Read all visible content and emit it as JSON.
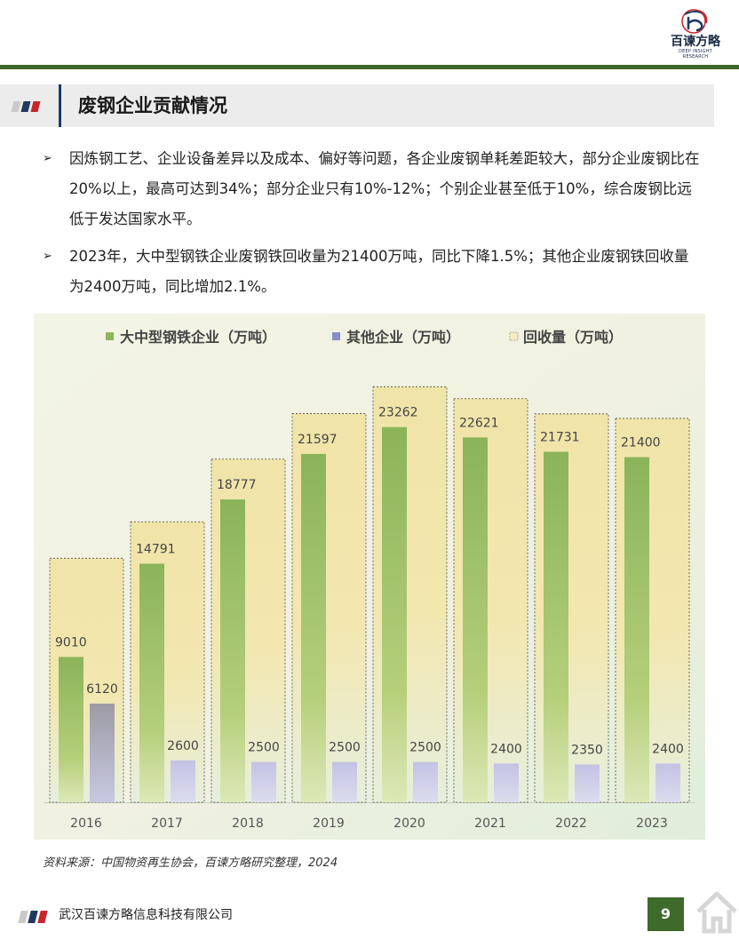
{
  "brand": {
    "logo_name": "百谏方略",
    "logo_subtitle": "DEEP INSIGHT RESEARCH",
    "green": "#3e6a2c",
    "navy": "#1e3a5f",
    "red": "#c8262c"
  },
  "section": {
    "title": "废钢企业贡献情况"
  },
  "bullets": [
    "因炼钢工艺、企业设备差异以及成本、偏好等问题，各企业废钢单耗差距较大，部分企业废钢比在20%以上，最高可达到34%；部分企业只有10%-12%；个别企业甚至低于10%，综合废钢比远低于发达国家水平。",
    "2023年，大中型钢铁企业废钢铁回收量为21400万吨，同比下降1.5%；其他企业废钢铁回收量为2400万吨，同比增加2.1%。"
  ],
  "chart_data": {
    "type": "bar",
    "title": "",
    "xlabel": "",
    "ylabel": "",
    "categories": [
      "2016",
      "2017",
      "2018",
      "2019",
      "2020",
      "2021",
      "2022",
      "2023"
    ],
    "series": [
      {
        "name": "大中型钢铁企业（万吨）",
        "values": [
          9010,
          14791,
          18777,
          21597,
          23262,
          22621,
          21731,
          21400
        ],
        "color": "#8db55c"
      },
      {
        "name": "其他企业（万吨）",
        "values": [
          6120,
          2600,
          2500,
          2500,
          2500,
          2400,
          2350,
          2400
        ],
        "color": "#9a9ac8"
      },
      {
        "name": "回收量（万吨）",
        "values": [
          15130,
          17391,
          21277,
          24097,
          25762,
          25021,
          24081,
          23800
        ],
        "color": "#f3e6a8"
      }
    ],
    "ylim": [
      0,
      26000
    ],
    "grid": false,
    "legend": "top"
  },
  "source": "资料来源：中国物资再生协会，百谏方略研究整理，2024",
  "footer": {
    "company": "武汉百谏方略信息科技有限公司",
    "page": "9"
  }
}
